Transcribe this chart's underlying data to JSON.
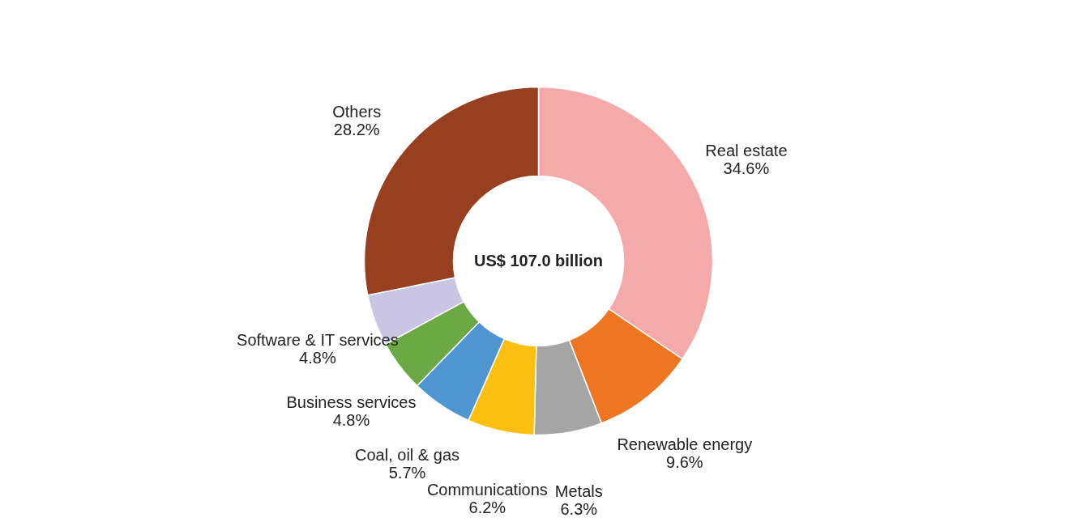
{
  "chart_data": {
    "type": "donut",
    "categories": [
      "Real estate",
      "Renewable energy",
      "Metals",
      "Communications",
      "Coal, oil & gas",
      "Business services",
      "Software & IT services",
      "Others"
    ],
    "values": [
      34.6,
      9.6,
      6.3,
      6.2,
      5.7,
      4.8,
      4.8,
      28.2
    ],
    "colors": [
      "#f5a9a9",
      "#ee7623",
      "#a5a5a5",
      "#fbbf12",
      "#4e96d2",
      "#6aa943",
      "#c9c5e3",
      "#983f1f"
    ],
    "value_labels": [
      "34.6%",
      "9.6%",
      "6.3%",
      "6.2%",
      "5.7%",
      "4.8%",
      "4.8%",
      "28.2%"
    ],
    "annotations": [
      "US$ 107.0 billion"
    ]
  }
}
